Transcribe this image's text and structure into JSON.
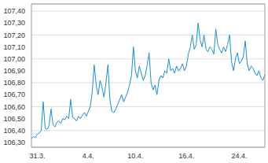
{
  "chart_data": {
    "type": "line",
    "color": "#1a8fd6",
    "grid": true,
    "categories": [
      null,
      null,
      null,
      "31.3.",
      null,
      null,
      null,
      null,
      null,
      null,
      null,
      null,
      null,
      null,
      null,
      null,
      null,
      null,
      null,
      null,
      null,
      null,
      null,
      null,
      null,
      null,
      null,
      null,
      null,
      "4.4.",
      null,
      null,
      null,
      null,
      null,
      null,
      null,
      null,
      null,
      null,
      null,
      null,
      null,
      null,
      null,
      null,
      null,
      null,
      null,
      null,
      null,
      null,
      null,
      "10.4.",
      null,
      null,
      null,
      null,
      null,
      null,
      null,
      null,
      null,
      null,
      null,
      null,
      null,
      null,
      null,
      null,
      null,
      null,
      null,
      null,
      null,
      null,
      null,
      null,
      null,
      "16.4.",
      null,
      null,
      null,
      null,
      null,
      null,
      null,
      null,
      null,
      null,
      null,
      null,
      null,
      null,
      null,
      null,
      null,
      null,
      null,
      null,
      null,
      null,
      null,
      null,
      null,
      null,
      "24.4.",
      null,
      null,
      null,
      null,
      null,
      null,
      null,
      null,
      null,
      null,
      null,
      null,
      null
    ],
    "values": [
      106.33,
      106.35,
      106.34,
      106.37,
      106.38,
      106.4,
      106.64,
      106.42,
      106.41,
      106.44,
      106.58,
      106.45,
      106.43,
      106.47,
      106.48,
      106.46,
      106.5,
      106.49,
      106.52,
      106.5,
      106.66,
      106.51,
      106.5,
      106.48,
      106.52,
      106.5,
      106.53,
      106.55,
      106.52,
      106.56,
      106.6,
      106.72,
      106.95,
      106.78,
      106.7,
      106.82,
      106.76,
      106.68,
      106.8,
      106.95,
      106.66,
      106.56,
      106.55,
      106.58,
      106.62,
      106.66,
      106.7,
      106.64,
      106.68,
      106.72,
      106.78,
      106.86,
      107.1,
      106.9,
      106.84,
      106.94,
      106.88,
      106.82,
      106.86,
      106.95,
      107.05,
      106.8,
      106.74,
      106.78,
      106.7,
      106.82,
      106.86,
      106.84,
      106.9,
      106.88,
      107.0,
      106.9,
      106.92,
      106.88,
      106.94,
      106.9,
      106.92,
      106.96,
      106.9,
      106.94,
      107.04,
      107.1,
      107.2,
      107.08,
      107.12,
      107.3,
      107.16,
      107.1,
      107.2,
      107.08,
      107.06,
      107.1,
      107.08,
      107.04,
      107.25,
      107.12,
      107.08,
      107.05,
      107.1,
      107.06,
      107.12,
      107.2,
      106.98,
      106.9,
      107.0,
      107.05,
      106.96,
      106.98,
      107.02,
      107.15,
      106.96,
      106.9,
      106.94,
      106.92,
      106.88,
      106.86,
      106.9,
      106.84,
      106.82,
      106.87
    ],
    "ylim": [
      106.26,
      107.46
    ],
    "yticks": [
      {
        "value": 106.3,
        "label": "106,30"
      },
      {
        "value": 106.4,
        "label": "106,40"
      },
      {
        "value": 106.5,
        "label": "106,50"
      },
      {
        "value": 106.6,
        "label": "106,60"
      },
      {
        "value": 106.7,
        "label": "106,70"
      },
      {
        "value": 106.8,
        "label": "106,80"
      },
      {
        "value": 106.9,
        "label": "106,90"
      },
      {
        "value": 107.0,
        "label": "107,00"
      },
      {
        "value": 107.1,
        "label": "107,10"
      },
      {
        "value": 107.2,
        "label": "107,20"
      },
      {
        "value": 107.3,
        "label": "107,30"
      },
      {
        "value": 107.4,
        "label": "107,40"
      }
    ]
  }
}
